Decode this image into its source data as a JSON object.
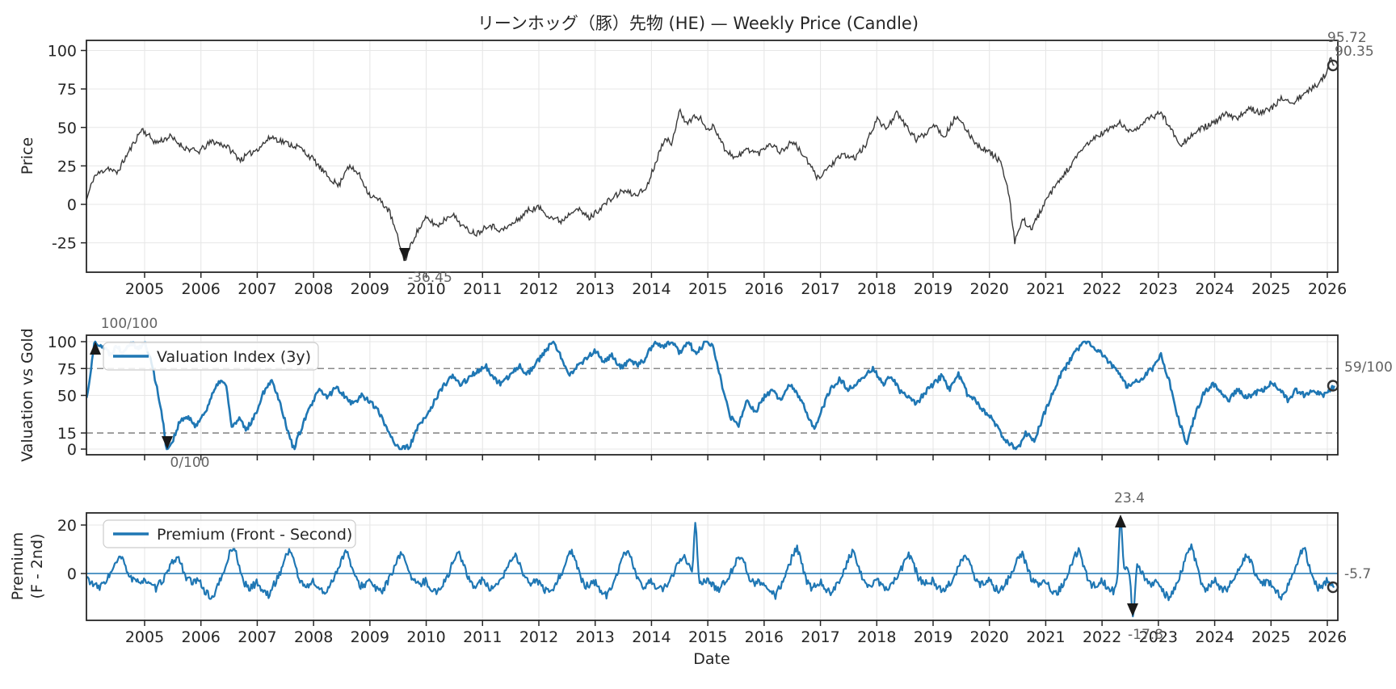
{
  "title": "リーンホッグ（豚）先物 (HE) — Weekly Price (Candle)",
  "xlabel": "Date",
  "colors": {
    "series_blue": "#1f77b4",
    "series_blue_faded": "#b3d1e8",
    "price_line": "#3a3a3a",
    "dashed_threshold": "#8a8a8a",
    "annotation_gray": "#636363",
    "axis": "#262626",
    "grid": "#e7e7e7"
  },
  "x_ticks": [
    2005,
    2006,
    2007,
    2008,
    2009,
    2010,
    2011,
    2012,
    2013,
    2014,
    2015,
    2016,
    2017,
    2018,
    2019,
    2020,
    2021,
    2022,
    2023,
    2024,
    2025,
    2026
  ],
  "chart_data": [
    {
      "panel": "price",
      "type": "line",
      "ylabel": "Price",
      "yticks": [
        100,
        75,
        50,
        25,
        0,
        -25
      ],
      "ylim": [
        -44,
        106
      ],
      "x_range": [
        2003.97,
        2026.13
      ],
      "annotations": {
        "min": {
          "text": "-36.45",
          "year": 2009.62,
          "value": -36.45,
          "marker": "down-arrow"
        },
        "recent_high": {
          "text": "95.72",
          "value": 95.72
        },
        "last": {
          "text": "90.35",
          "value": 90.35,
          "marker": "circle"
        }
      },
      "waypoints": [
        [
          2003.97,
          3
        ],
        [
          2004.1,
          18
        ],
        [
          2004.35,
          24
        ],
        [
          2004.5,
          20
        ],
        [
          2004.95,
          49
        ],
        [
          2005.2,
          40
        ],
        [
          2005.45,
          44
        ],
        [
          2005.7,
          37
        ],
        [
          2005.95,
          34
        ],
        [
          2006.2,
          41
        ],
        [
          2006.45,
          38
        ],
        [
          2006.7,
          29
        ],
        [
          2007.0,
          36
        ],
        [
          2007.25,
          44
        ],
        [
          2007.5,
          40
        ],
        [
          2007.75,
          37
        ],
        [
          2008.0,
          29
        ],
        [
          2008.2,
          20
        ],
        [
          2008.45,
          12
        ],
        [
          2008.6,
          25
        ],
        [
          2008.8,
          20
        ],
        [
          2009.0,
          6
        ],
        [
          2009.2,
          2
        ],
        [
          2009.35,
          -5
        ],
        [
          2009.62,
          -36.45
        ],
        [
          2009.8,
          -20
        ],
        [
          2010.0,
          -9
        ],
        [
          2010.2,
          -14
        ],
        [
          2010.45,
          -6
        ],
        [
          2010.7,
          -16
        ],
        [
          2010.9,
          -19
        ],
        [
          2011.1,
          -13
        ],
        [
          2011.35,
          -17
        ],
        [
          2011.6,
          -11
        ],
        [
          2011.8,
          -4
        ],
        [
          2012.0,
          -2
        ],
        [
          2012.2,
          -8
        ],
        [
          2012.4,
          -11
        ],
        [
          2012.65,
          -2
        ],
        [
          2012.9,
          -9
        ],
        [
          2013.1,
          -2
        ],
        [
          2013.3,
          4
        ],
        [
          2013.5,
          9
        ],
        [
          2013.7,
          6
        ],
        [
          2013.9,
          10
        ],
        [
          2014.1,
          30
        ],
        [
          2014.25,
          45
        ],
        [
          2014.35,
          37
        ],
        [
          2014.5,
          63
        ],
        [
          2014.6,
          52
        ],
        [
          2014.75,
          57
        ],
        [
          2014.9,
          55
        ],
        [
          2015.0,
          47
        ],
        [
          2015.1,
          52
        ],
        [
          2015.3,
          36
        ],
        [
          2015.5,
          30
        ],
        [
          2015.7,
          36
        ],
        [
          2015.9,
          33
        ],
        [
          2016.1,
          40
        ],
        [
          2016.3,
          34
        ],
        [
          2016.5,
          41
        ],
        [
          2016.7,
          32
        ],
        [
          2016.95,
          17
        ],
        [
          2017.2,
          26
        ],
        [
          2017.4,
          32
        ],
        [
          2017.6,
          30
        ],
        [
          2017.8,
          38
        ],
        [
          2018.0,
          56
        ],
        [
          2018.15,
          49
        ],
        [
          2018.35,
          59
        ],
        [
          2018.5,
          52
        ],
        [
          2018.7,
          42
        ],
        [
          2018.9,
          47
        ],
        [
          2019.0,
          53
        ],
        [
          2019.2,
          44
        ],
        [
          2019.4,
          57
        ],
        [
          2019.6,
          48
        ],
        [
          2019.8,
          38
        ],
        [
          2020.0,
          34
        ],
        [
          2020.2,
          28
        ],
        [
          2020.35,
          5
        ],
        [
          2020.45,
          -24
        ],
        [
          2020.6,
          -10
        ],
        [
          2020.75,
          -16
        ],
        [
          2020.9,
          -5
        ],
        [
          2021.1,
          8
        ],
        [
          2021.3,
          18
        ],
        [
          2021.5,
          28
        ],
        [
          2021.7,
          38
        ],
        [
          2021.9,
          44
        ],
        [
          2022.1,
          48
        ],
        [
          2022.3,
          53
        ],
        [
          2022.5,
          47
        ],
        [
          2022.7,
          52
        ],
        [
          2022.9,
          57
        ],
        [
          2023.05,
          60
        ],
        [
          2023.2,
          50
        ],
        [
          2023.4,
          39
        ],
        [
          2023.6,
          45
        ],
        [
          2023.8,
          50
        ],
        [
          2024.0,
          53
        ],
        [
          2024.2,
          59
        ],
        [
          2024.4,
          55
        ],
        [
          2024.6,
          63
        ],
        [
          2024.8,
          60
        ],
        [
          2025.0,
          62
        ],
        [
          2025.2,
          69
        ],
        [
          2025.4,
          66
        ],
        [
          2025.6,
          72
        ],
        [
          2025.8,
          77
        ],
        [
          2026.0,
          86
        ],
        [
          2026.06,
          95.7
        ],
        [
          2026.13,
          90.35
        ]
      ],
      "overrides": [
        [
          2009.62,
          -36.45,
          0.03
        ],
        [
          2026.06,
          95.7,
          0.015
        ],
        [
          2026.13,
          90.35,
          0.012
        ]
      ]
    },
    {
      "panel": "valuation",
      "type": "line",
      "ylabel": "Valuation vs Gold",
      "legend": "Valuation Index (3y)",
      "yticks": [
        0,
        15,
        50,
        75,
        100
      ],
      "threshold_lines": [
        15,
        75
      ],
      "ylim": [
        -5,
        106
      ],
      "faded_window": [
        2004.28,
        2005.06
      ],
      "annotations": {
        "max": {
          "text": "100/100",
          "year": 2004.12,
          "value": 100,
          "marker": "up-arrow"
        },
        "min": {
          "text": "0/100",
          "year": 2005.4,
          "value": 0,
          "marker": "down-arrow"
        },
        "last": {
          "text": "59/100",
          "value": 59,
          "marker": "circle"
        }
      },
      "waypoints": [
        [
          2003.97,
          47
        ],
        [
          2004.05,
          75
        ],
        [
          2004.12,
          100
        ],
        [
          2004.25,
          96
        ],
        [
          2004.4,
          88
        ],
        [
          2004.5,
          97
        ],
        [
          2004.6,
          90
        ],
        [
          2004.75,
          100
        ],
        [
          2004.9,
          94
        ],
        [
          2005.0,
          99
        ],
        [
          2005.1,
          85
        ],
        [
          2005.25,
          50
        ],
        [
          2005.4,
          0
        ],
        [
          2005.5,
          8
        ],
        [
          2005.62,
          25
        ],
        [
          2005.75,
          30
        ],
        [
          2005.9,
          22
        ],
        [
          2006.05,
          32
        ],
        [
          2006.2,
          50
        ],
        [
          2006.35,
          65
        ],
        [
          2006.45,
          58
        ],
        [
          2006.55,
          20
        ],
        [
          2006.68,
          28
        ],
        [
          2006.8,
          18
        ],
        [
          2006.95,
          30
        ],
        [
          2007.1,
          52
        ],
        [
          2007.25,
          65
        ],
        [
          2007.4,
          45
        ],
        [
          2007.55,
          15
        ],
        [
          2007.65,
          0
        ],
        [
          2007.8,
          22
        ],
        [
          2007.95,
          40
        ],
        [
          2008.1,
          55
        ],
        [
          2008.25,
          48
        ],
        [
          2008.4,
          58
        ],
        [
          2008.55,
          50
        ],
        [
          2008.7,
          42
        ],
        [
          2008.85,
          50
        ],
        [
          2009.0,
          45
        ],
        [
          2009.15,
          35
        ],
        [
          2009.3,
          20
        ],
        [
          2009.45,
          5
        ],
        [
          2009.55,
          0
        ],
        [
          2009.7,
          2
        ],
        [
          2009.85,
          20
        ],
        [
          2010.0,
          30
        ],
        [
          2010.15,
          45
        ],
        [
          2010.3,
          58
        ],
        [
          2010.45,
          68
        ],
        [
          2010.6,
          60
        ],
        [
          2010.75,
          66
        ],
        [
          2010.9,
          72
        ],
        [
          2011.05,
          78
        ],
        [
          2011.2,
          65
        ],
        [
          2011.35,
          60
        ],
        [
          2011.5,
          70
        ],
        [
          2011.65,
          78
        ],
        [
          2011.8,
          70
        ],
        [
          2011.95,
          80
        ],
        [
          2012.1,
          90
        ],
        [
          2012.25,
          100
        ],
        [
          2012.4,
          85
        ],
        [
          2012.55,
          70
        ],
        [
          2012.7,
          78
        ],
        [
          2012.85,
          85
        ],
        [
          2013.0,
          92
        ],
        [
          2013.15,
          80
        ],
        [
          2013.3,
          88
        ],
        [
          2013.45,
          75
        ],
        [
          2013.6,
          82
        ],
        [
          2013.75,
          78
        ],
        [
          2013.9,
          85
        ],
        [
          2014.05,
          100
        ],
        [
          2014.2,
          95
        ],
        [
          2014.35,
          100
        ],
        [
          2014.5,
          90
        ],
        [
          2014.65,
          100
        ],
        [
          2014.8,
          88
        ],
        [
          2014.95,
          100
        ],
        [
          2015.1,
          95
        ],
        [
          2015.25,
          60
        ],
        [
          2015.4,
          30
        ],
        [
          2015.55,
          22
        ],
        [
          2015.7,
          45
        ],
        [
          2015.85,
          35
        ],
        [
          2016.0,
          48
        ],
        [
          2016.15,
          55
        ],
        [
          2016.3,
          45
        ],
        [
          2016.45,
          60
        ],
        [
          2016.6,
          50
        ],
        [
          2016.75,
          35
        ],
        [
          2016.9,
          18
        ],
        [
          2017.05,
          40
        ],
        [
          2017.2,
          58
        ],
        [
          2017.35,
          65
        ],
        [
          2017.5,
          55
        ],
        [
          2017.65,
          62
        ],
        [
          2017.8,
          70
        ],
        [
          2017.95,
          75
        ],
        [
          2018.1,
          60
        ],
        [
          2018.25,
          68
        ],
        [
          2018.4,
          55
        ],
        [
          2018.55,
          48
        ],
        [
          2018.7,
          42
        ],
        [
          2018.85,
          52
        ],
        [
          2019.0,
          60
        ],
        [
          2019.15,
          68
        ],
        [
          2019.3,
          55
        ],
        [
          2019.45,
          70
        ],
        [
          2019.6,
          52
        ],
        [
          2019.75,
          45
        ],
        [
          2019.9,
          35
        ],
        [
          2020.05,
          28
        ],
        [
          2020.2,
          15
        ],
        [
          2020.35,
          5
        ],
        [
          2020.5,
          0
        ],
        [
          2020.65,
          15
        ],
        [
          2020.8,
          8
        ],
        [
          2020.95,
          30
        ],
        [
          2021.1,
          50
        ],
        [
          2021.25,
          68
        ],
        [
          2021.4,
          80
        ],
        [
          2021.55,
          92
        ],
        [
          2021.7,
          100
        ],
        [
          2021.85,
          95
        ],
        [
          2022.0,
          88
        ],
        [
          2022.15,
          80
        ],
        [
          2022.3,
          70
        ],
        [
          2022.45,
          58
        ],
        [
          2022.6,
          62
        ],
        [
          2022.75,
          68
        ],
        [
          2022.9,
          75
        ],
        [
          2023.05,
          88
        ],
        [
          2023.2,
          62
        ],
        [
          2023.35,
          30
        ],
        [
          2023.5,
          5
        ],
        [
          2023.65,
          32
        ],
        [
          2023.8,
          52
        ],
        [
          2023.95,
          60
        ],
        [
          2024.1,
          55
        ],
        [
          2024.25,
          45
        ],
        [
          2024.4,
          56
        ],
        [
          2024.55,
          48
        ],
        [
          2024.7,
          52
        ],
        [
          2024.85,
          55
        ],
        [
          2025.0,
          62
        ],
        [
          2025.15,
          55
        ],
        [
          2025.3,
          46
        ],
        [
          2025.45,
          55
        ],
        [
          2025.6,
          50
        ],
        [
          2025.75,
          55
        ],
        [
          2025.9,
          50
        ],
        [
          2026.0,
          52
        ],
        [
          2026.13,
          59
        ]
      ],
      "overrides": [
        [
          2004.12,
          100,
          0.025
        ],
        [
          2005.4,
          0,
          0.03
        ],
        [
          2026.13,
          59,
          0.012
        ]
      ]
    },
    {
      "panel": "premium",
      "type": "line",
      "ylabel_lines": [
        "Premium",
        "(F - 2nd)"
      ],
      "legend": "Premium (Front - Second)",
      "yticks": [
        0,
        20
      ],
      "zero_line": 0,
      "ylim": [
        -19.3,
        25
      ],
      "annotations": {
        "max": {
          "text": "23.4",
          "year": 2022.33,
          "value": 23.4,
          "marker": "up-arrow"
        },
        "min": {
          "text": "-17.8",
          "year": 2022.55,
          "value": -17.8,
          "marker": "down-arrow"
        },
        "last": {
          "text": "-5.7",
          "value": -5.7,
          "marker": "circle"
        }
      },
      "seasonal_pattern": [
        [
          0.0,
          -3
        ],
        [
          0.08,
          -6
        ],
        [
          0.2,
          -8
        ],
        [
          0.3,
          -4
        ],
        [
          0.4,
          0
        ],
        [
          0.5,
          6
        ],
        [
          0.58,
          9
        ],
        [
          0.66,
          4
        ],
        [
          0.74,
          -2
        ],
        [
          0.84,
          -5
        ],
        [
          0.92,
          -4
        ],
        [
          1.0,
          -3
        ]
      ],
      "extremes": [
        [
          2014.78,
          21,
          0.04
        ],
        [
          2022.33,
          23.4,
          0.04
        ],
        [
          2022.55,
          -17.8,
          0.05
        ],
        [
          2026.13,
          -5.7,
          0.02
        ]
      ]
    }
  ]
}
